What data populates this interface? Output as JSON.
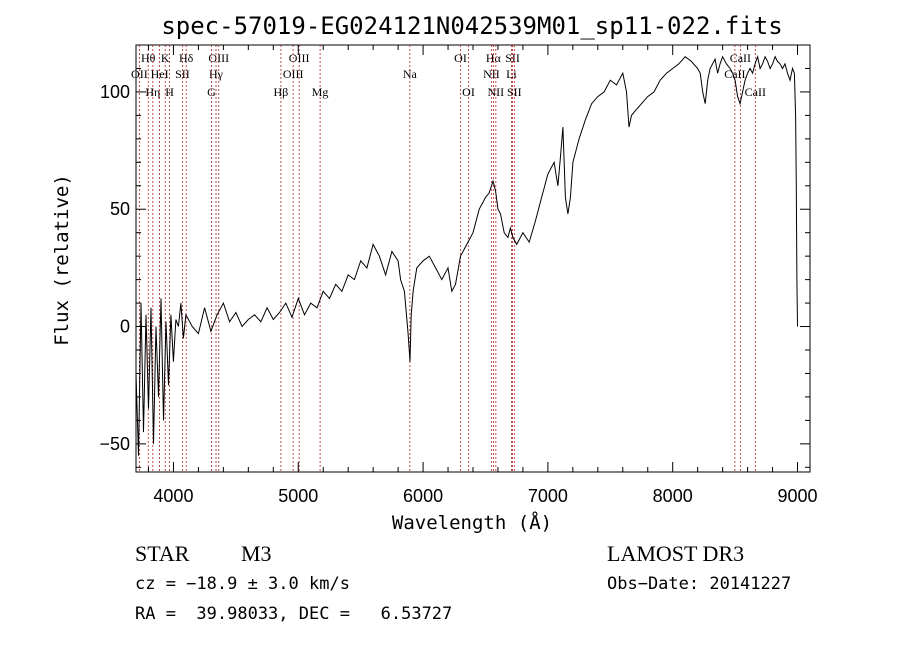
{
  "chart_data": {
    "type": "line",
    "title": "spec-57019-EG024121N042539M01_sp11-022.fits",
    "xlabel": "Wavelength (Å)",
    "ylabel": "Flux (relative)",
    "xlim": [
      3700,
      9100
    ],
    "ylim": [
      -62,
      120
    ],
    "xticks": [
      4000,
      5000,
      6000,
      7000,
      8000,
      9000
    ],
    "xtick_labels": [
      "4000",
      "5000",
      "6000",
      "7000",
      "8000",
      "9000"
    ],
    "yticks": [
      -50,
      0,
      50,
      100
    ],
    "ytick_labels": [
      "−50",
      "0",
      "50",
      "100"
    ],
    "series": [
      {
        "name": "flux",
        "x": [
          3700,
          3720,
          3740,
          3760,
          3780,
          3800,
          3820,
          3840,
          3860,
          3880,
          3900,
          3920,
          3940,
          3960,
          3980,
          4000,
          4020,
          4040,
          4060,
          4080,
          4100,
          4150,
          4200,
          4250,
          4300,
          4350,
          4400,
          4450,
          4500,
          4550,
          4600,
          4650,
          4700,
          4750,
          4800,
          4850,
          4900,
          4950,
          5000,
          5050,
          5100,
          5150,
          5200,
          5250,
          5300,
          5350,
          5400,
          5450,
          5500,
          5550,
          5600,
          5650,
          5700,
          5750,
          5800,
          5820,
          5850,
          5880,
          5895,
          5905,
          5920,
          5950,
          6000,
          6050,
          6100,
          6150,
          6200,
          6230,
          6260,
          6300,
          6350,
          6400,
          6450,
          6500,
          6530,
          6560,
          6580,
          6600,
          6620,
          6650,
          6680,
          6700,
          6720,
          6750,
          6800,
          6850,
          6900,
          6950,
          7000,
          7050,
          7080,
          7100,
          7120,
          7140,
          7160,
          7180,
          7200,
          7250,
          7300,
          7350,
          7400,
          7450,
          7500,
          7550,
          7600,
          7630,
          7650,
          7670,
          7700,
          7750,
          7800,
          7850,
          7900,
          7950,
          8000,
          8050,
          8100,
          8150,
          8200,
          8220,
          8240,
          8260,
          8280,
          8300,
          8320,
          8340,
          8360,
          8380,
          8400,
          8430,
          8460,
          8480,
          8500,
          8520,
          8540,
          8560,
          8580,
          8600,
          8620,
          8640,
          8660,
          8680,
          8700,
          8720,
          8740,
          8760,
          8780,
          8800,
          8820,
          8840,
          8860,
          8880,
          8900,
          8920,
          8940,
          8960,
          8975,
          8985,
          8990,
          8995,
          9000
        ],
        "y": [
          -20,
          -55,
          10,
          -45,
          5,
          -35,
          8,
          -50,
          0,
          -30,
          12,
          -40,
          2,
          -25,
          5,
          -15,
          3,
          0,
          10,
          -5,
          5,
          0,
          -3,
          8,
          -2,
          5,
          10,
          2,
          6,
          0,
          3,
          5,
          2,
          8,
          3,
          6,
          10,
          4,
          12,
          5,
          10,
          8,
          15,
          12,
          18,
          15,
          22,
          20,
          28,
          25,
          35,
          30,
          22,
          32,
          28,
          20,
          15,
          -3,
          -15,
          5,
          15,
          25,
          28,
          30,
          25,
          20,
          25,
          15,
          18,
          30,
          35,
          40,
          50,
          55,
          57,
          62,
          58,
          50,
          48,
          40,
          38,
          42,
          38,
          35,
          40,
          36,
          45,
          55,
          65,
          70,
          60,
          72,
          85,
          55,
          48,
          55,
          70,
          80,
          88,
          95,
          98,
          100,
          105,
          103,
          108,
          100,
          85,
          90,
          92,
          95,
          98,
          100,
          105,
          108,
          110,
          112,
          115,
          113,
          110,
          108,
          100,
          95,
          105,
          110,
          112,
          114,
          108,
          112,
          115,
          112,
          110,
          108,
          105,
          98,
          95,
          100,
          105,
          108,
          110,
          108,
          112,
          115,
          110,
          112,
          115,
          113,
          110,
          112,
          115,
          113,
          112,
          110,
          112,
          108,
          105,
          110,
          108,
          90,
          60,
          20,
          0
        ]
      }
    ],
    "lines": [
      {
        "label": "Hθ",
        "x": 3798,
        "row": 1
      },
      {
        "label": "OII",
        "x": 3727,
        "row": 2
      },
      {
        "label": "Hη",
        "x": 3835,
        "row": 3
      },
      {
        "label": "K",
        "x": 3934,
        "row": 1
      },
      {
        "label": "HeI",
        "x": 3889,
        "row": 2
      },
      {
        "label": "H",
        "x": 3969,
        "row": 3
      },
      {
        "label": "SII",
        "x": 4072,
        "row": 2
      },
      {
        "label": "Hδ",
        "x": 4102,
        "row": 1
      },
      {
        "label": "OIII",
        "x": 4363,
        "row": 1
      },
      {
        "label": "Hγ",
        "x": 4341,
        "row": 2
      },
      {
        "label": "G",
        "x": 4305,
        "row": 3
      },
      {
        "label": "Hβ",
        "x": 4861,
        "row": 3
      },
      {
        "label": "OIII",
        "x": 5007,
        "row": 1
      },
      {
        "label": "OIII",
        "x": 4959,
        "row": 2
      },
      {
        "label": "Mg",
        "x": 5175,
        "row": 3
      },
      {
        "label": "Na",
        "x": 5894,
        "row": 2
      },
      {
        "label": "OI",
        "x": 6300,
        "row": 1
      },
      {
        "label": "OI",
        "x": 6364,
        "row": 3
      },
      {
        "label": "Hα",
        "x": 6563,
        "row": 1
      },
      {
        "label": "NII",
        "x": 6548,
        "row": 2
      },
      {
        "label": "NII",
        "x": 6583,
        "row": 3
      },
      {
        "label": "SII",
        "x": 6717,
        "row": 1
      },
      {
        "label": "Li",
        "x": 6708,
        "row": 2
      },
      {
        "label": "SII",
        "x": 6731,
        "row": 3
      },
      {
        "label": "CaII",
        "x": 8542,
        "row": 1
      },
      {
        "label": "CaII",
        "x": 8498,
        "row": 2
      },
      {
        "label": "CaII",
        "x": 8662,
        "row": 3
      }
    ]
  },
  "info": {
    "object_class": "STAR",
    "subclass": "M3",
    "survey": "LAMOST DR3",
    "redshift": "cz = −18.9 ± 3.0 km/s",
    "obs_date": "Obs−Date: 20141227",
    "coords": "RA =  39.98033, DEC =   6.53727"
  }
}
